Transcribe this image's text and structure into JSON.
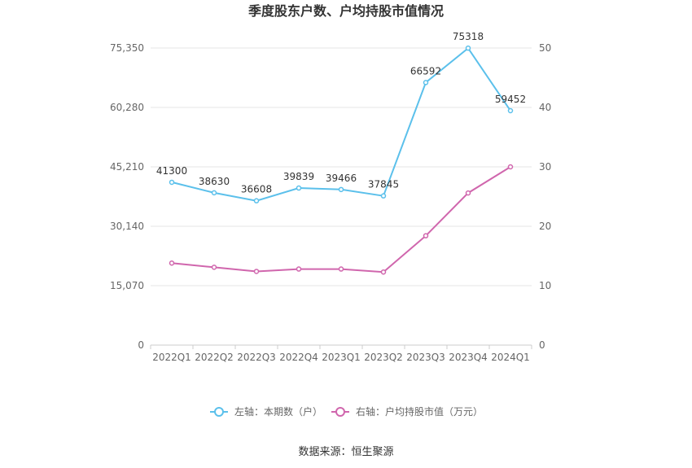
{
  "chart_data": {
    "type": "line",
    "title": "季度股东户数、户均持股市值情况",
    "categories": [
      "2022Q1",
      "2022Q2",
      "2022Q3",
      "2022Q4",
      "2023Q1",
      "2023Q2",
      "2023Q3",
      "2023Q4",
      "2024Q1"
    ],
    "left_axis": {
      "ticks": [
        "0",
        "15,070",
        "30,140",
        "45,210",
        "60,280",
        "75,350"
      ],
      "min": 0,
      "max": 75350
    },
    "right_axis": {
      "ticks": [
        "0",
        "10",
        "20",
        "30",
        "40",
        "50"
      ],
      "min": 0,
      "max": 50
    },
    "series": [
      {
        "name": "左轴：本期数（户）",
        "axis": "left",
        "color": "#5bc0eb",
        "values": [
          41300,
          38630,
          36608,
          39839,
          39466,
          37845,
          66592,
          75318,
          59452
        ],
        "labels": [
          "41300",
          "38630",
          "36608",
          "39839",
          "39466",
          "37845",
          "66592",
          "75318",
          "59452"
        ]
      },
      {
        "name": "右轴：户均持股市值（万元）",
        "axis": "right",
        "color": "#d066ad",
        "values": [
          13.8,
          13.1,
          12.4,
          12.8,
          12.8,
          12.3,
          18.4,
          25.6,
          30.0
        ]
      }
    ],
    "legend_position": "bottom",
    "grid": true
  },
  "footer": {
    "source": "数据来源：恒生聚源"
  }
}
